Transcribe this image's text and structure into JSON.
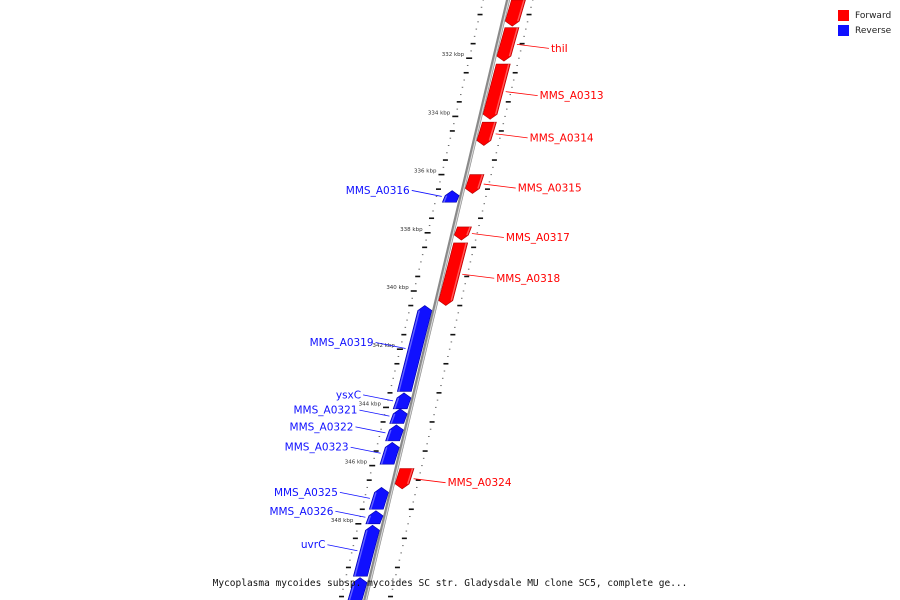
{
  "caption": "Mycoplasma mycoides subsp. mycoides SC str. Gladysdale MU clone SC5, complete ge...",
  "legend": [
    {
      "label": "Forward",
      "color": "#ff0000"
    },
    {
      "label": "Reverse",
      "color": "#1010ff"
    }
  ],
  "ticks": [
    {
      "kbp": 332,
      "label": "332 kbp"
    },
    {
      "kbp": 334,
      "label": "334 kbp"
    },
    {
      "kbp": 336,
      "label": "336 kbp"
    },
    {
      "kbp": 338,
      "label": "338 kbp"
    },
    {
      "kbp": 340,
      "label": "340 kbp"
    },
    {
      "kbp": 342,
      "label": "342 kbp"
    },
    {
      "kbp": 344,
      "label": "344 kbp"
    },
    {
      "kbp": 346,
      "label": "346 kbp"
    },
    {
      "kbp": 348,
      "label": "348 kbp"
    }
  ],
  "genes": [
    {
      "label": "",
      "strand": "forward",
      "start_kbp": 330.0,
      "end_kbp": 330.9
    },
    {
      "label": "thiI",
      "strand": "forward",
      "start_kbp": 330.95,
      "end_kbp": 332.1
    },
    {
      "label": "MMS_A0313",
      "strand": "forward",
      "start_kbp": 332.2,
      "end_kbp": 334.1
    },
    {
      "label": "MMS_A0314",
      "strand": "forward",
      "start_kbp": 334.2,
      "end_kbp": 335.0
    },
    {
      "label": "MMS_A0315",
      "strand": "forward",
      "start_kbp": 336.0,
      "end_kbp": 336.65
    },
    {
      "label": "MMS_A0316",
      "strand": "reverse",
      "start_kbp": 336.55,
      "end_kbp": 336.95
    },
    {
      "label": "MMS_A0317",
      "strand": "forward",
      "start_kbp": 337.8,
      "end_kbp": 338.25
    },
    {
      "label": "MMS_A0318",
      "strand": "forward",
      "start_kbp": 338.35,
      "end_kbp": 340.5
    },
    {
      "label": "MMS_A0319",
      "strand": "reverse",
      "start_kbp": 340.5,
      "end_kbp": 343.45
    },
    {
      "label": "ysxC",
      "strand": "reverse",
      "start_kbp": 343.5,
      "end_kbp": 344.05
    },
    {
      "label": "MMS_A0321",
      "strand": "reverse",
      "start_kbp": 344.05,
      "end_kbp": 344.55
    },
    {
      "label": "MMS_A0322",
      "strand": "reverse",
      "start_kbp": 344.6,
      "end_kbp": 345.15
    },
    {
      "label": "MMS_A0323",
      "strand": "reverse",
      "start_kbp": 345.2,
      "end_kbp": 345.95
    },
    {
      "label": "MMS_A0324",
      "strand": "forward",
      "start_kbp": 346.1,
      "end_kbp": 346.8
    },
    {
      "label": "MMS_A0325",
      "strand": "reverse",
      "start_kbp": 346.75,
      "end_kbp": 347.5
    },
    {
      "label": "MMS_A0326",
      "strand": "reverse",
      "start_kbp": 347.55,
      "end_kbp": 348.0
    },
    {
      "label": "uvrC",
      "strand": "reverse",
      "start_kbp": 348.05,
      "end_kbp": 349.8
    },
    {
      "label": "",
      "strand": "reverse",
      "start_kbp": 349.85,
      "end_kbp": 350.8
    }
  ]
}
